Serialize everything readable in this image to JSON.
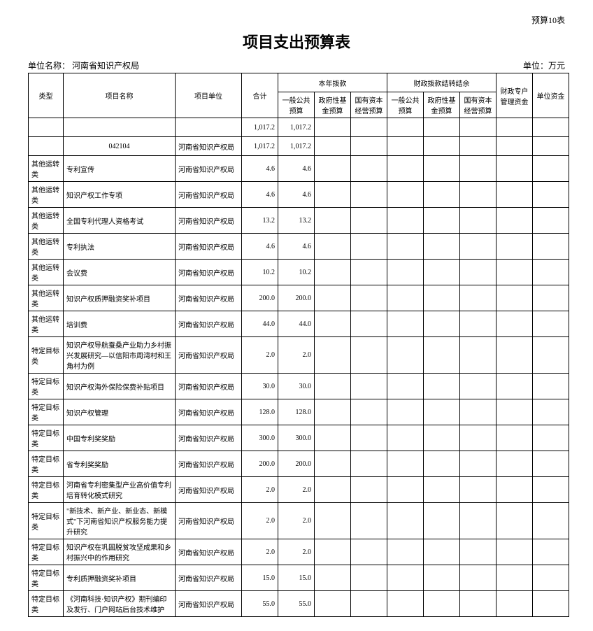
{
  "top_right": "预算10表",
  "title": "项目支出预算表",
  "org_label": "单位名称：",
  "org_name": "河南省知识产权局",
  "unit_label": "单位：万元",
  "headers": {
    "type": "类型",
    "project": "项目名称",
    "proj_unit": "项目单位",
    "total": "合计",
    "grp_current": "本年拨款",
    "grp_carry": "财政拨款结转结余",
    "general": "一般公共预算",
    "gov_fund": "政府性基金预算",
    "state_cap": "国有资本经营预算",
    "fin_special": "财政专户管理资金",
    "unit_fund": "单位资金"
  },
  "rows": [
    {
      "type": "",
      "name": "",
      "unit": "",
      "total": "1,017.2",
      "c1": "1,017.2",
      "c2": "",
      "c3": "",
      "y1": "",
      "y2": "",
      "y3": "",
      "fs": "",
      "uf": ""
    },
    {
      "type": "",
      "name": "042104",
      "unit": "河南省知识产权局",
      "total": "1,017.2",
      "c1": "1,017.2",
      "c2": "",
      "c3": "",
      "y1": "",
      "y2": "",
      "y3": "",
      "fs": "",
      "uf": ""
    },
    {
      "type": "其他运转类",
      "name": "专利宣传",
      "unit": "河南省知识产权局",
      "total": "4.6",
      "c1": "4.6",
      "c2": "",
      "c3": "",
      "y1": "",
      "y2": "",
      "y3": "",
      "fs": "",
      "uf": ""
    },
    {
      "type": "其他运转类",
      "name": "知识产权工作专项",
      "unit": "河南省知识产权局",
      "total": "4.6",
      "c1": "4.6",
      "c2": "",
      "c3": "",
      "y1": "",
      "y2": "",
      "y3": "",
      "fs": "",
      "uf": ""
    },
    {
      "type": "其他运转类",
      "name": "全国专利代理人资格考试",
      "unit": "河南省知识产权局",
      "total": "13.2",
      "c1": "13.2",
      "c2": "",
      "c3": "",
      "y1": "",
      "y2": "",
      "y3": "",
      "fs": "",
      "uf": ""
    },
    {
      "type": "其他运转类",
      "name": "专利执法",
      "unit": "河南省知识产权局",
      "total": "4.6",
      "c1": "4.6",
      "c2": "",
      "c3": "",
      "y1": "",
      "y2": "",
      "y3": "",
      "fs": "",
      "uf": ""
    },
    {
      "type": "其他运转类",
      "name": "会议费",
      "unit": "河南省知识产权局",
      "total": "10.2",
      "c1": "10.2",
      "c2": "",
      "c3": "",
      "y1": "",
      "y2": "",
      "y3": "",
      "fs": "",
      "uf": ""
    },
    {
      "type": "其他运转类",
      "name": "知识产权质押融资奖补项目",
      "unit": "河南省知识产权局",
      "total": "200.0",
      "c1": "200.0",
      "c2": "",
      "c3": "",
      "y1": "",
      "y2": "",
      "y3": "",
      "fs": "",
      "uf": ""
    },
    {
      "type": "其他运转类",
      "name": "培训费",
      "unit": "河南省知识产权局",
      "total": "44.0",
      "c1": "44.0",
      "c2": "",
      "c3": "",
      "y1": "",
      "y2": "",
      "y3": "",
      "fs": "",
      "uf": ""
    },
    {
      "type": "特定目标类",
      "name": "知识产权导航蚕桑产业助力乡村振兴发展研究—以信阳市周湾村和王角村为例",
      "unit": "河南省知识产权局",
      "total": "2.0",
      "c1": "2.0",
      "c2": "",
      "c3": "",
      "y1": "",
      "y2": "",
      "y3": "",
      "fs": "",
      "uf": ""
    },
    {
      "type": "特定目标类",
      "name": "知识产权海外保险保费补贴项目",
      "unit": "河南省知识产权局",
      "total": "30.0",
      "c1": "30.0",
      "c2": "",
      "c3": "",
      "y1": "",
      "y2": "",
      "y3": "",
      "fs": "",
      "uf": ""
    },
    {
      "type": "特定目标类",
      "name": "知识产权管理",
      "unit": "河南省知识产权局",
      "total": "128.0",
      "c1": "128.0",
      "c2": "",
      "c3": "",
      "y1": "",
      "y2": "",
      "y3": "",
      "fs": "",
      "uf": ""
    },
    {
      "type": "特定目标类",
      "name": "中国专利奖奖励",
      "unit": "河南省知识产权局",
      "total": "300.0",
      "c1": "300.0",
      "c2": "",
      "c3": "",
      "y1": "",
      "y2": "",
      "y3": "",
      "fs": "",
      "uf": ""
    },
    {
      "type": "特定目标类",
      "name": "省专利奖奖励",
      "unit": "河南省知识产权局",
      "total": "200.0",
      "c1": "200.0",
      "c2": "",
      "c3": "",
      "y1": "",
      "y2": "",
      "y3": "",
      "fs": "",
      "uf": ""
    },
    {
      "type": "特定目标类",
      "name": "河南省专利密集型产业高价值专利培育转化模式研究",
      "unit": "河南省知识产权局",
      "total": "2.0",
      "c1": "2.0",
      "c2": "",
      "c3": "",
      "y1": "",
      "y2": "",
      "y3": "",
      "fs": "",
      "uf": ""
    },
    {
      "type": "特定目标类",
      "name": "\"新技术、新产业、新业态、新模式\"下河南省知识产权服务能力提升研究",
      "unit": "河南省知识产权局",
      "total": "2.0",
      "c1": "2.0",
      "c2": "",
      "c3": "",
      "y1": "",
      "y2": "",
      "y3": "",
      "fs": "",
      "uf": ""
    },
    {
      "type": "特定目标类",
      "name": "知识产权在巩固脱贫攻坚成果和乡村振兴中的作用研究",
      "unit": "河南省知识产权局",
      "total": "2.0",
      "c1": "2.0",
      "c2": "",
      "c3": "",
      "y1": "",
      "y2": "",
      "y3": "",
      "fs": "",
      "uf": ""
    },
    {
      "type": "特定目标类",
      "name": "专利质押融资奖补项目",
      "unit": "河南省知识产权局",
      "total": "15.0",
      "c1": "15.0",
      "c2": "",
      "c3": "",
      "y1": "",
      "y2": "",
      "y3": "",
      "fs": "",
      "uf": ""
    },
    {
      "type": "特定目标类",
      "name": "《河南科技·知识产权》期刊编印及发行、门户网站后台技术维护",
      "unit": "河南省知识产权局",
      "total": "55.0",
      "c1": "55.0",
      "c2": "",
      "c3": "",
      "y1": "",
      "y2": "",
      "y3": "",
      "fs": "",
      "uf": ""
    }
  ]
}
